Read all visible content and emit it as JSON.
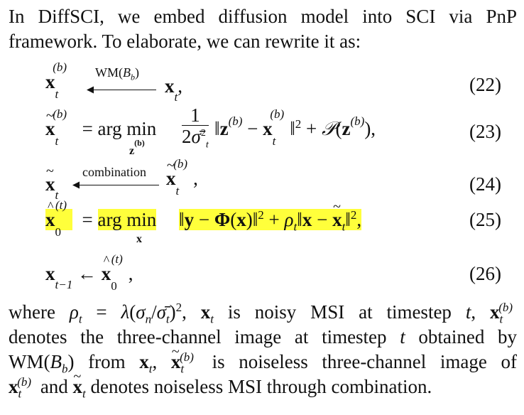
{
  "intro": {
    "line1": "In DiffSCI, we embed diffusion model into SCI via PnP",
    "line2": "framework. To elaborate, we can rewrite it as:"
  },
  "equations": {
    "eq22": {
      "lhs": "x",
      "arrow_label": "WM(B_b)",
      "rhs": "x",
      "number": "(22)"
    },
    "eq23": {
      "argmin": "arg min",
      "under": "z(b)",
      "frac_num": "1",
      "frac_den": "2σ̄²",
      "number": "(23)"
    },
    "eq24": {
      "arrow_label": "combination",
      "number": "(24)"
    },
    "eq25": {
      "argmin": "arg min",
      "under": "x",
      "number": "(25)",
      "highlight_color": "#ffff3b"
    },
    "eq26": {
      "number": "(26)"
    }
  },
  "body": {
    "line1": "where ρt = λ(σn/σ̄t)², xt is noisy MSI at timestep t, x(b)t",
    "line2": "denotes the three-channel image at timestep t obtained by",
    "line3": "WM(Bb) from xt, x̃(b)t is noiseless three-channel image of",
    "line4": "x(b)t and x̃t denotes noiseless MSI through combination."
  }
}
